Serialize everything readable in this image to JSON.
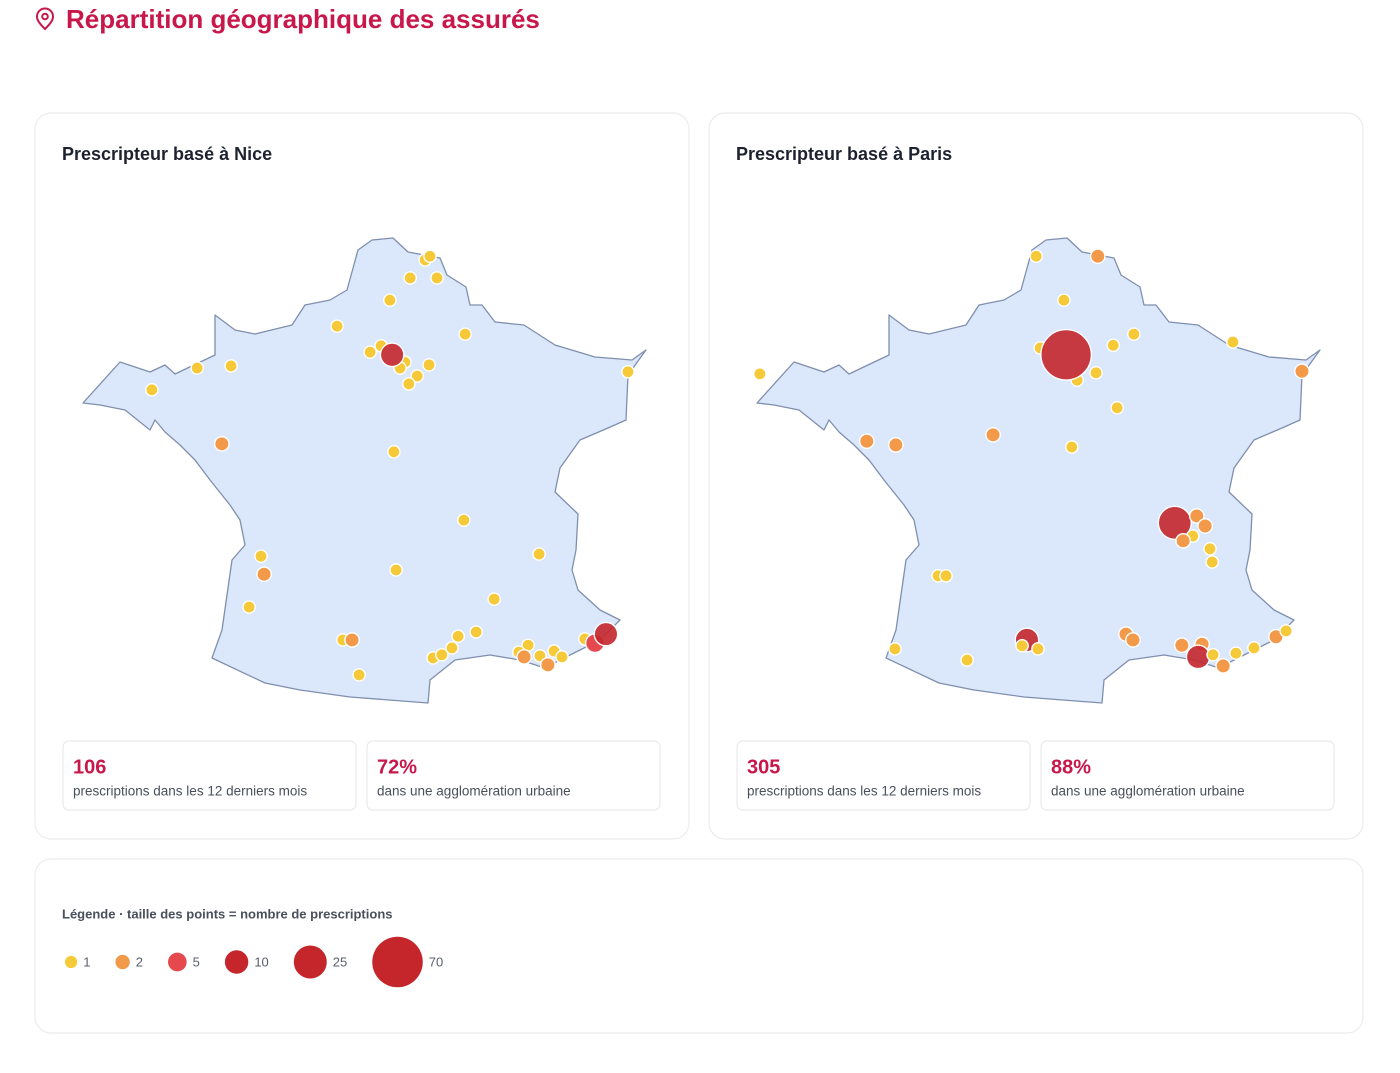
{
  "header": {
    "title": "Répartition géographique des assurés"
  },
  "maps": [
    {
      "title": "Prescripteur basé à Nice",
      "points": [
        {
          "lon": 2.98,
          "lat": 50.69,
          "value": 1
        },
        {
          "lon": 3.09,
          "lat": 50.76,
          "value": 1
        },
        {
          "lon": 2.64,
          "lat": 50.35,
          "value": 1
        },
        {
          "lon": 3.25,
          "lat": 50.35,
          "value": 1
        },
        {
          "lon": 2.18,
          "lat": 49.93,
          "value": 1
        },
        {
          "lon": 0.98,
          "lat": 49.44,
          "value": 1
        },
        {
          "lon": 3.89,
          "lat": 49.29,
          "value": 1
        },
        {
          "lon": 1.73,
          "lat": 48.95,
          "value": 1
        },
        {
          "lon": 1.98,
          "lat": 49.07,
          "value": 1
        },
        {
          "lon": 2.52,
          "lat": 48.76,
          "value": 1
        },
        {
          "lon": 2.41,
          "lat": 48.65,
          "value": 1
        },
        {
          "lon": 3.07,
          "lat": 48.71,
          "value": 1
        },
        {
          "lon": 2.8,
          "lat": 48.5,
          "value": 1
        },
        {
          "lon": 2.61,
          "lat": 48.35,
          "value": 1
        },
        {
          "lon": 2.23,
          "lat": 48.9,
          "value": 10
        },
        {
          "lon": -2.2,
          "lat": 48.65,
          "value": 1
        },
        {
          "lon": -1.43,
          "lat": 48.69,
          "value": 1
        },
        {
          "lon": -3.23,
          "lat": 48.24,
          "value": 1
        },
        {
          "lon": 7.59,
          "lat": 48.58,
          "value": 1
        },
        {
          "lon": -1.64,
          "lat": 47.22,
          "value": 2
        },
        {
          "lon": 2.27,
          "lat": 47.07,
          "value": 1
        },
        {
          "lon": 3.86,
          "lat": 45.78,
          "value": 1
        },
        {
          "lon": -0.75,
          "lat": 45.1,
          "value": 1
        },
        {
          "lon": -0.68,
          "lat": 44.76,
          "value": 2
        },
        {
          "lon": 5.57,
          "lat": 45.14,
          "value": 1
        },
        {
          "lon": 2.32,
          "lat": 44.84,
          "value": 1
        },
        {
          "lon": -1.02,
          "lat": 44.14,
          "value": 1
        },
        {
          "lon": 4.55,
          "lat": 44.29,
          "value": 1
        },
        {
          "lon": 1.11,
          "lat": 43.52,
          "value": 1
        },
        {
          "lon": 1.32,
          "lat": 43.52,
          "value": 2
        },
        {
          "lon": 1.48,
          "lat": 42.86,
          "value": 1
        },
        {
          "lon": 3.16,
          "lat": 43.18,
          "value": 1
        },
        {
          "lon": 3.36,
          "lat": 43.24,
          "value": 1
        },
        {
          "lon": 3.59,
          "lat": 43.37,
          "value": 1
        },
        {
          "lon": 3.73,
          "lat": 43.59,
          "value": 1
        },
        {
          "lon": 4.14,
          "lat": 43.67,
          "value": 1
        },
        {
          "lon": 5.32,
          "lat": 43.42,
          "value": 1
        },
        {
          "lon": 5.11,
          "lat": 43.29,
          "value": 1
        },
        {
          "lon": 5.23,
          "lat": 43.2,
          "value": 2
        },
        {
          "lon": 5.59,
          "lat": 43.22,
          "value": 1
        },
        {
          "lon": 5.77,
          "lat": 43.05,
          "value": 2
        },
        {
          "lon": 5.91,
          "lat": 43.31,
          "value": 1
        },
        {
          "lon": 6.09,
          "lat": 43.2,
          "value": 1
        },
        {
          "lon": 6.61,
          "lat": 43.54,
          "value": 1
        },
        {
          "lon": 6.84,
          "lat": 43.46,
          "value": 5
        },
        {
          "lon": 7.09,
          "lat": 43.63,
          "value": 10
        }
      ],
      "stats": [
        {
          "value": 106,
          "label": "prescriptions dans les 12 derniers mois"
        },
        {
          "value": "72%",
          "label": "dans une agglomération urbaine"
        }
      ]
    },
    {
      "title": "Prescripteur basé à Paris",
      "points": [
        {
          "lon": 1.55,
          "lat": 50.76,
          "value": 1
        },
        {
          "lon": 2.95,
          "lat": 50.76,
          "value": 2
        },
        {
          "lon": 2.18,
          "lat": 49.93,
          "value": 1
        },
        {
          "lon": 1.64,
          "lat": 49.03,
          "value": 1
        },
        {
          "lon": 3.3,
          "lat": 49.08,
          "value": 1
        },
        {
          "lon": 3.77,
          "lat": 49.29,
          "value": 1
        },
        {
          "lon": 2.91,
          "lat": 48.56,
          "value": 1
        },
        {
          "lon": 2.48,
          "lat": 48.42,
          "value": 1
        },
        {
          "lon": 3.39,
          "lat": 47.9,
          "value": 1
        },
        {
          "lon": 6.02,
          "lat": 49.14,
          "value": 1
        },
        {
          "lon": 7.59,
          "lat": 48.59,
          "value": 2
        },
        {
          "lon": -4.73,
          "lat": 48.54,
          "value": 1
        },
        {
          "lon": -2.3,
          "lat": 47.27,
          "value": 2
        },
        {
          "lon": -1.64,
          "lat": 47.2,
          "value": 2
        },
        {
          "lon": 0.57,
          "lat": 47.39,
          "value": 2
        },
        {
          "lon": 2.36,
          "lat": 47.16,
          "value": 1
        },
        {
          "lon": 2.23,
          "lat": 48.9,
          "value": 70
        },
        {
          "lon": 4.7,
          "lat": 45.73,
          "value": 25
        },
        {
          "lon": 5.2,
          "lat": 45.86,
          "value": 2
        },
        {
          "lon": 5.39,
          "lat": 45.67,
          "value": 2
        },
        {
          "lon": 5.11,
          "lat": 45.48,
          "value": 1
        },
        {
          "lon": 4.89,
          "lat": 45.39,
          "value": 2
        },
        {
          "lon": 5.5,
          "lat": 45.24,
          "value": 1
        },
        {
          "lon": 5.55,
          "lat": 44.99,
          "value": 1
        },
        {
          "lon": -0.68,
          "lat": 44.73,
          "value": 1
        },
        {
          "lon": -0.5,
          "lat": 44.73,
          "value": 1
        },
        {
          "lon": -1.66,
          "lat": 43.35,
          "value": 1
        },
        {
          "lon": -0.02,
          "lat": 43.14,
          "value": 1
        },
        {
          "lon": 1.34,
          "lat": 43.52,
          "value": 10
        },
        {
          "lon": 1.59,
          "lat": 43.35,
          "value": 1
        },
        {
          "lon": 1.23,
          "lat": 43.41,
          "value": 1
        },
        {
          "lon": 3.59,
          "lat": 43.63,
          "value": 2
        },
        {
          "lon": 3.75,
          "lat": 43.52,
          "value": 2
        },
        {
          "lon": 4.86,
          "lat": 43.42,
          "value": 2
        },
        {
          "lon": 5.32,
          "lat": 43.44,
          "value": 2
        },
        {
          "lon": 5.23,
          "lat": 43.2,
          "value": 10
        },
        {
          "lon": 5.57,
          "lat": 43.24,
          "value": 1
        },
        {
          "lon": 5.8,
          "lat": 43.03,
          "value": 2
        },
        {
          "lon": 6.09,
          "lat": 43.27,
          "value": 1
        },
        {
          "lon": 6.5,
          "lat": 43.37,
          "value": 1
        },
        {
          "lon": 7.0,
          "lat": 43.58,
          "value": 2
        },
        {
          "lon": 7.23,
          "lat": 43.69,
          "value": 1
        }
      ],
      "stats": [
        {
          "value": 305,
          "label": "prescriptions dans les 12 derniers mois"
        },
        {
          "value": "88%",
          "label": "dans une agglomération urbaine"
        }
      ]
    }
  ],
  "legend": {
    "title": "Légende · taille des points = nombre de prescriptions",
    "entries": [
      {
        "value": 1,
        "color": "#f6c938"
      },
      {
        "value": 2,
        "color": "#f2994a"
      },
      {
        "value": 5,
        "color": "#e5484d"
      },
      {
        "value": 10,
        "color": "#c4262c"
      },
      {
        "value": 25,
        "color": "#c4262c"
      },
      {
        "value": 70,
        "color": "#c4262c"
      }
    ]
  }
}
